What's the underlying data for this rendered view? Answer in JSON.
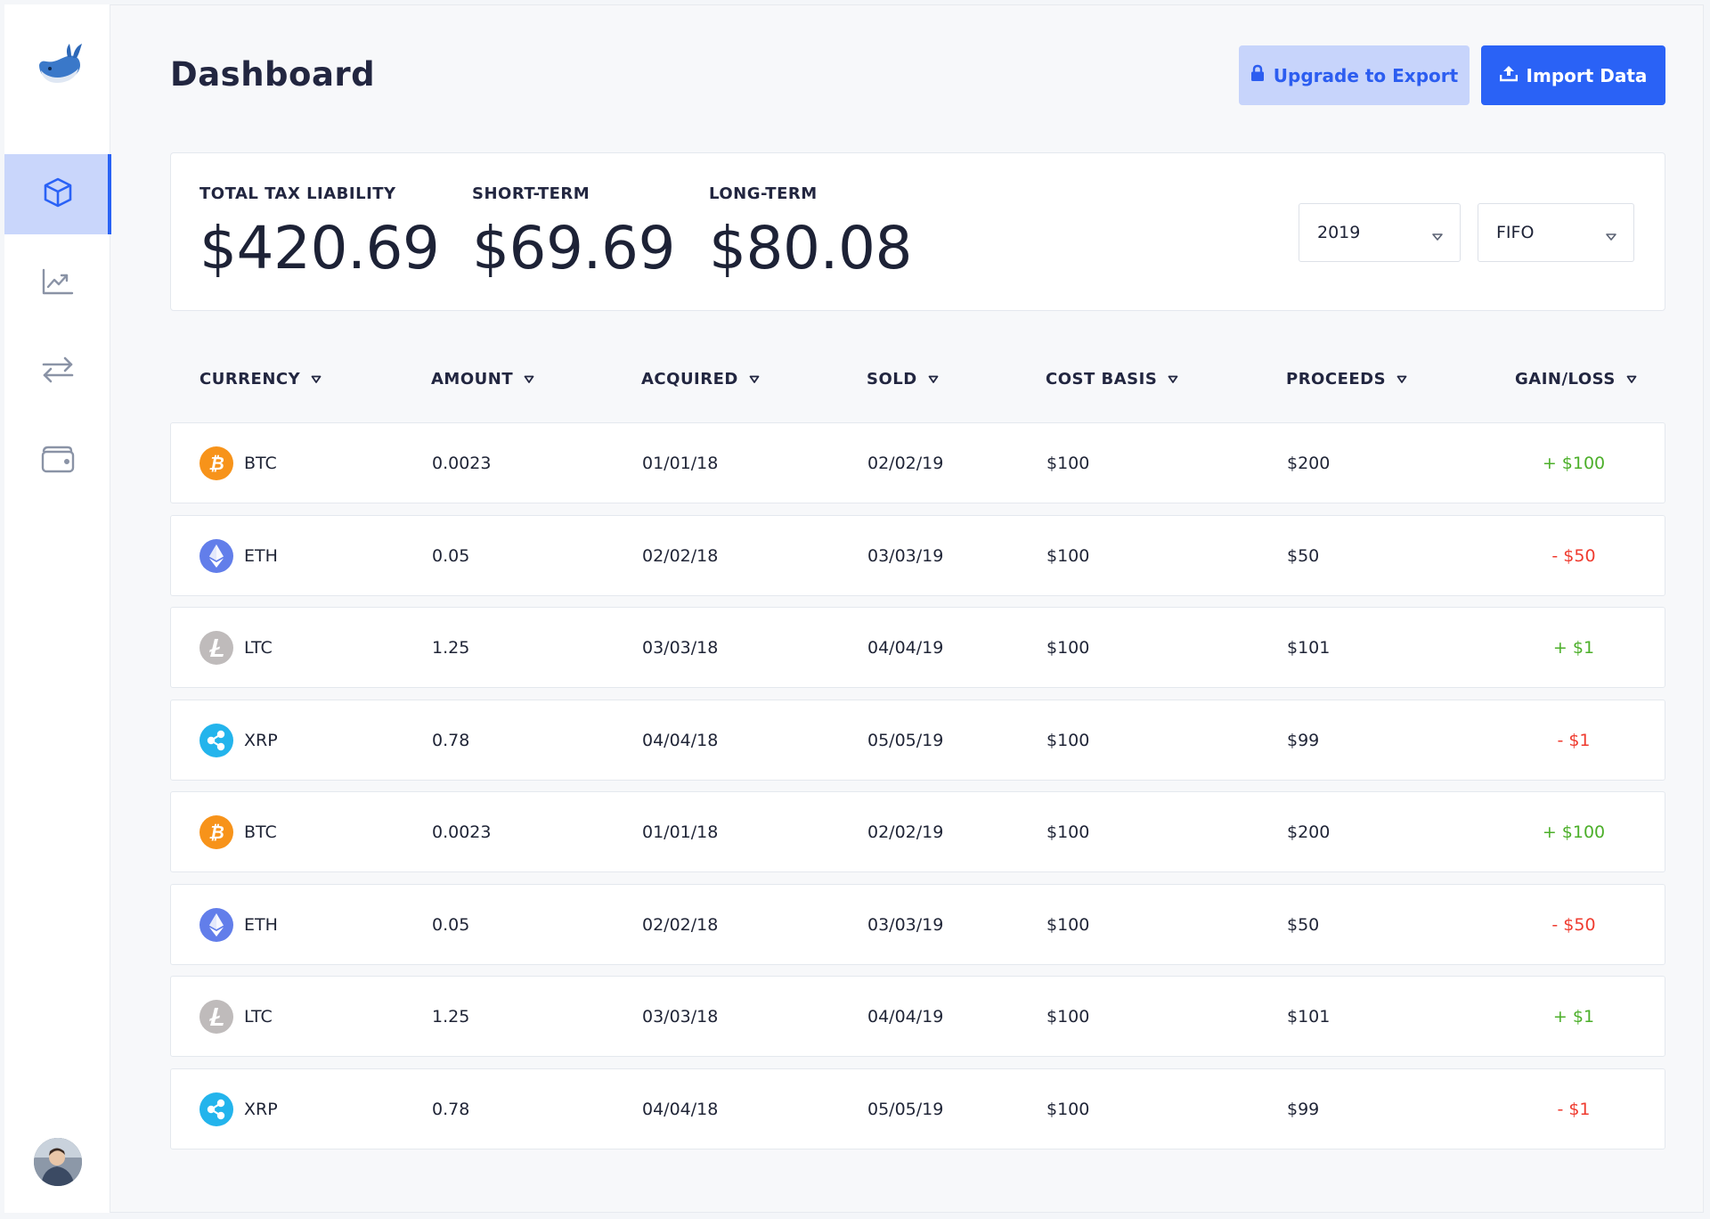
{
  "header": {
    "title": "Dashboard",
    "upgrade_label": "Upgrade to Export",
    "import_label": "Import Data"
  },
  "summary": {
    "total": {
      "label": "TOTAL TAX LIABILITY",
      "value": "$420.69"
    },
    "short_term": {
      "label": "SHORT-TERM",
      "value": "$69.69"
    },
    "long_term": {
      "label": "LONG-TERM",
      "value": "$80.08"
    },
    "year_select": "2019",
    "method_select": "FIFO"
  },
  "table": {
    "columns": [
      "CURRENCY",
      "AMOUNT",
      "ACQUIRED",
      "SOLD",
      "COST BASIS",
      "PROCEEDS",
      "GAIN/LOSS"
    ],
    "rows": [
      {
        "coin": "BTC",
        "amount": "0.0023",
        "acquired": "01/01/18",
        "sold": "02/02/19",
        "cost_basis": "$100",
        "proceeds": "$200",
        "gain_loss": "+ $100",
        "status": "gain"
      },
      {
        "coin": "ETH",
        "amount": "0.05",
        "acquired": "02/02/18",
        "sold": "03/03/19",
        "cost_basis": "$100",
        "proceeds": "$50",
        "gain_loss": "- $50",
        "status": "loss"
      },
      {
        "coin": "LTC",
        "amount": "1.25",
        "acquired": "03/03/18",
        "sold": "04/04/19",
        "cost_basis": "$100",
        "proceeds": "$101",
        "gain_loss": "+ $1",
        "status": "gain"
      },
      {
        "coin": "XRP",
        "amount": "0.78",
        "acquired": "04/04/18",
        "sold": "05/05/19",
        "cost_basis": "$100",
        "proceeds": "$99",
        "gain_loss": "- $1",
        "status": "loss"
      },
      {
        "coin": "BTC",
        "amount": "0.0023",
        "acquired": "01/01/18",
        "sold": "02/02/19",
        "cost_basis": "$100",
        "proceeds": "$200",
        "gain_loss": "+ $100",
        "status": "gain"
      },
      {
        "coin": "ETH",
        "amount": "0.05",
        "acquired": "02/02/18",
        "sold": "03/03/19",
        "cost_basis": "$100",
        "proceeds": "$50",
        "gain_loss": "- $50",
        "status": "loss"
      },
      {
        "coin": "LTC",
        "amount": "1.25",
        "acquired": "03/03/18",
        "sold": "04/04/19",
        "cost_basis": "$100",
        "proceeds": "$101",
        "gain_loss": "+ $1",
        "status": "gain"
      },
      {
        "coin": "XRP",
        "amount": "0.78",
        "acquired": "04/04/18",
        "sold": "05/05/19",
        "cost_basis": "$100",
        "proceeds": "$99",
        "gain_loss": "- $1",
        "status": "loss"
      }
    ]
  },
  "sidebar": {
    "items": [
      {
        "icon": "cube-icon",
        "active": true
      },
      {
        "icon": "chart-line-icon",
        "active": false
      },
      {
        "icon": "transfer-arrows-icon",
        "active": false
      },
      {
        "icon": "wallet-icon",
        "active": false
      }
    ],
    "logo": "whale-logo-icon",
    "avatar": "user-avatar"
  },
  "colors": {
    "accent": "#2a62f6",
    "accent_light": "#c7d4fb",
    "gain": "#4caf2a",
    "loss": "#ef3b2f",
    "btc": "#f7931a",
    "eth": "#627eea",
    "ltc": "#bfbbbb",
    "xrp": "#23b4ec"
  }
}
